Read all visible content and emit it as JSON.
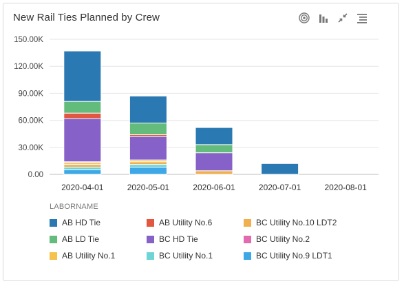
{
  "title": "New Rail Ties Planned by Crew",
  "toolbar": [
    {
      "name": "target-icon",
      "tooltip": ""
    },
    {
      "name": "bar-chart-icon",
      "tooltip": ""
    },
    {
      "name": "collapse-icon",
      "tooltip": ""
    },
    {
      "name": "list-icon",
      "tooltip": ""
    }
  ],
  "legend_title": "LABORNAME",
  "chart_data": {
    "type": "bar",
    "stacked": true,
    "categories": [
      "2020-04-01",
      "2020-05-01",
      "2020-06-01",
      "2020-07-01",
      "2020-08-01"
    ],
    "ylim": [
      0,
      150000
    ],
    "yticks": [
      0,
      30000,
      60000,
      90000,
      120000,
      150000
    ],
    "ytick_labels": [
      "0.00",
      "30.00K",
      "60.00K",
      "90.00K",
      "120.00K",
      "150.00K"
    ],
    "grid": true,
    "legend_position": "bottom",
    "stack_order": [
      "BC Utility No.9 LDT1",
      "BC Utility No.1",
      "BC Utility No.10 LDT2",
      "AB Utility No.1",
      "BC Utility No.2",
      "BC HD Tie",
      "AB Utility No.6",
      "AB LD Tie",
      "AB HD Tie"
    ],
    "series": [
      {
        "name": "AB HD Tie",
        "color": "#2a79b2",
        "values": [
          56000,
          30000,
          19000,
          12000,
          0
        ]
      },
      {
        "name": "AB LD Tie",
        "color": "#63bb7c",
        "values": [
          13000,
          13000,
          9000,
          0,
          0
        ]
      },
      {
        "name": "AB Utility No.1",
        "color": "#f5c24b",
        "values": [
          2000,
          2000,
          0,
          0,
          0
        ]
      },
      {
        "name": "AB Utility No.6",
        "color": "#e2573f",
        "values": [
          6000,
          2000,
          0,
          0,
          0
        ]
      },
      {
        "name": "BC HD Tie",
        "color": "#8661c8",
        "values": [
          48000,
          26000,
          20000,
          0,
          0
        ]
      },
      {
        "name": "BC Utility No.1",
        "color": "#6ed4d6",
        "values": [
          3000,
          3000,
          0,
          0,
          0
        ]
      },
      {
        "name": "BC Utility No.10 LDT2",
        "color": "#f0b050",
        "values": [
          3000,
          3000,
          4000,
          0,
          0
        ]
      },
      {
        "name": "BC Utility No.2",
        "color": "#e26bb0",
        "values": [
          1000,
          0,
          0,
          0,
          0
        ]
      },
      {
        "name": "BC Utility No.9 LDT1",
        "color": "#3ea8e6",
        "values": [
          5000,
          8000,
          0,
          0,
          0
        ]
      }
    ],
    "legend_order": [
      "AB HD Tie",
      "AB Utility No.6",
      "BC Utility No.10 LDT2",
      "AB LD Tie",
      "BC HD Tie",
      "BC Utility No.2",
      "AB Utility No.1",
      "BC Utility No.1",
      "BC Utility No.9 LDT1"
    ]
  }
}
